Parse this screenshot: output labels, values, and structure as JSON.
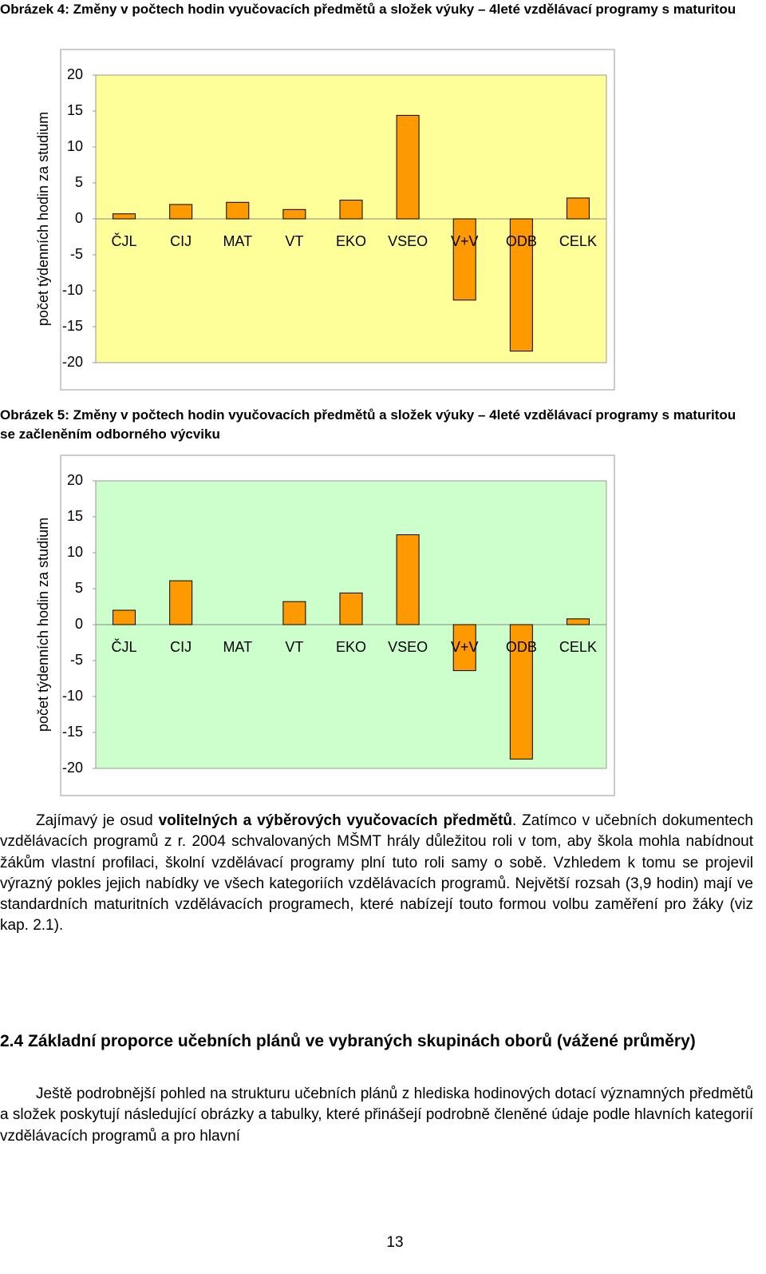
{
  "chart_data": [
    {
      "type": "bar",
      "title": "Obrázek 4: Změny v počtech hodin vyučovacích předmětů a složek výuky – 4leté vzdělávací programy s maturitou",
      "y_label": "počet týdenních hodin za studium",
      "categories": [
        "ČJL",
        "CIJ",
        "MAT",
        "VT",
        "EKO",
        "VSEO",
        "V+V",
        "ODB",
        "CELK"
      ],
      "values": [
        0.7,
        2.0,
        2.3,
        1.3,
        2.6,
        14.4,
        -11.3,
        -18.4,
        2.9
      ],
      "color": "#ff9900",
      "background": "#ffff99",
      "ylim": [
        -20,
        20
      ],
      "yticks": [
        -20,
        -15,
        -10,
        -5,
        0,
        5,
        10,
        15,
        20
      ],
      "grid": false
    },
    {
      "type": "bar",
      "title": "Obrázek 5: Změny v počtech hodin vyučovacích předmětů a složek výuky – 4leté vzdělávací programy s maturitou se začleněním odborného výcviku",
      "y_label": "počet týdenních hodin za studium",
      "categories": [
        "ČJL",
        "CIJ",
        "MAT",
        "VT",
        "EKO",
        "VSEO",
        "V+V",
        "ODB",
        "CELK"
      ],
      "values": [
        2.0,
        6.1,
        0,
        3.2,
        4.4,
        12.5,
        -6.4,
        -18.7,
        0.8
      ],
      "color": "#ff9900",
      "background": "#ccffcc",
      "ylim": [
        -20,
        20
      ],
      "yticks": [
        -20,
        -15,
        -10,
        -5,
        0,
        5,
        10,
        15,
        20
      ],
      "grid": false
    }
  ],
  "document": {
    "paragraph_1": [
      "Zajímavý je osud ",
      "volitelných a výběrových vyučovacích předmětů",
      ". Zatímco v učebních dokumentech vzdělávacích programů z r. 2004 schvalovaných MŠMT hrály důležitou roli v tom, aby škola mohla nabídnout žákům vlastní profilaci, školní vzdělávací programy plní tuto roli samy o sobě. Vzhledem k tomu se projevil výrazný pokles jejich nabídky ve všech kategoriích vzdělávacích programů. Největší rozsah (3,9 hodin) mají ve standardních maturitních vzdělávacích programech, které nabízejí touto formou volbu zaměření pro žáky (viz kap. 2.1)."
    ],
    "heading": "2.4 Základní proporce učebních plánů ve vybraných skupinách oborů (vážené průměry)",
    "paragraph_2": "Ještě podrobnější pohled na strukturu učebních plánů z hlediska hodinových dotací významných předmětů a složek poskytují následující obrázky a tabulky, které přinášejí podrobně členěné údaje podle hlavních kategorií vzdělávacích programů a  pro hlavní",
    "page_number": "13"
  }
}
